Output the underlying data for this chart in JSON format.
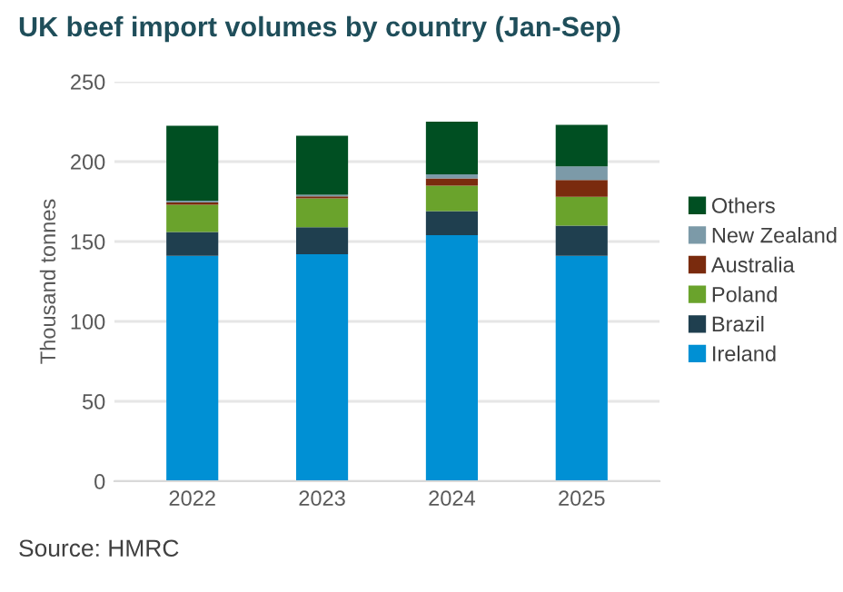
{
  "chart_data": {
    "type": "bar",
    "stacked": true,
    "title": "UK beef import volumes by country (Jan-Sep)",
    "ylabel": "Thousand tonnes",
    "categories": [
      "2022",
      "2023",
      "2024",
      "2025"
    ],
    "series": [
      {
        "name": "Ireland",
        "color": "#0090d4",
        "values": [
          141,
          142,
          154,
          141
        ]
      },
      {
        "name": "Brazil",
        "color": "#1f3f4f",
        "values": [
          15,
          17,
          15,
          19
        ]
      },
      {
        "name": "Poland",
        "color": "#6aa32c",
        "values": [
          17,
          18,
          16,
          18
        ]
      },
      {
        "name": "Australia",
        "color": "#7a2b0e",
        "values": [
          1.5,
          1.2,
          4.5,
          10.5
        ]
      },
      {
        "name": "New Zealand",
        "color": "#7c9aa8",
        "values": [
          1,
          1,
          2.5,
          8.5
        ]
      },
      {
        "name": "Others",
        "color": "#004f22",
        "values": [
          47,
          37,
          33,
          26
        ]
      }
    ],
    "ylim": [
      0,
      250
    ],
    "yticks": [
      0,
      50,
      100,
      150,
      200,
      250
    ],
    "grid": "y",
    "legend": "right",
    "annotations": [
      "Source: HMRC"
    ]
  }
}
